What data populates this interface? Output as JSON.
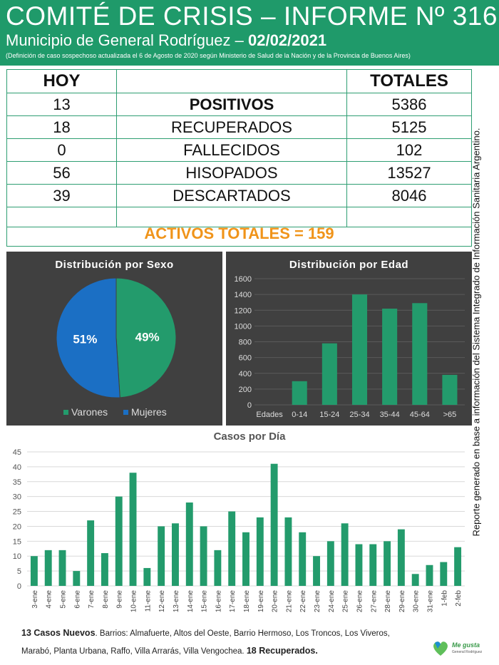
{
  "header": {
    "title": "COMITÉ DE CRISIS – INFORME Nº 316",
    "subtitle": "Municipio de General Rodríguez –",
    "date": "02/02/2021",
    "note": "(Definición de caso sospechoso actualizada el 6 de Agosto de 2020 según Ministerio de Salud de la Nación y de la Provincia de Buenos Aires)"
  },
  "table": {
    "hoy_label": "HOY",
    "totales_label": "TOTALES",
    "rows": [
      {
        "hoy": "13",
        "label": "POSITIVOS",
        "total": "5386"
      },
      {
        "hoy": "18",
        "label": "RECUPERADOS",
        "total": "5125"
      },
      {
        "hoy": "0",
        "label": "FALLECIDOS",
        "total": "102"
      },
      {
        "hoy": "56",
        "label": "HISOPADOS",
        "total": "13527"
      },
      {
        "hoy": "39",
        "label": "DESCARTADOS",
        "total": "8046"
      }
    ],
    "activos": "ACTIVOS TOTALES = 159"
  },
  "side_note": "Reporte generado en base a información del Sistema Integrado de Información Sanitaria Argentino.",
  "colors": {
    "green": "#1f9a6a",
    "bar": "#239b6c",
    "blue": "#1b6fc4",
    "orange": "#f0941a",
    "panel": "#404040"
  },
  "chart_data": [
    {
      "type": "pie",
      "title": "Distribución por Sexo",
      "categories": [
        "Varones",
        "Mujeres"
      ],
      "values": [
        49,
        51
      ],
      "labels": [
        "49%",
        "51%"
      ],
      "legend": "bottom"
    },
    {
      "type": "bar",
      "title": "Distribución por Edad",
      "categories": [
        "Edades",
        "0-14",
        "15-24",
        "25-34",
        "35-44",
        "45-64",
        ">65"
      ],
      "values": [
        0,
        300,
        780,
        1400,
        1220,
        1290,
        380
      ],
      "ylim": [
        0,
        1600
      ],
      "yticks": [
        "0",
        "200",
        "400",
        "600",
        "800",
        "1000",
        "1200",
        "1400",
        "1600"
      ],
      "grid": true
    },
    {
      "type": "bar",
      "title": "Casos por Día",
      "categories": [
        "3-ene",
        "4-ene",
        "5-ene",
        "6-ene",
        "7-ene",
        "8-ene",
        "9-ene",
        "10-ene",
        "11-ene",
        "12-ene",
        "13-ene",
        "14-ene",
        "15-ene",
        "16-ene",
        "17-ene",
        "18-ene",
        "19-ene",
        "20-ene",
        "21-ene",
        "22-ene",
        "23-ene",
        "24-ene",
        "25-ene",
        "26-ene",
        "27-ene",
        "28-ene",
        "29-ene",
        "30-ene",
        "31-ene",
        "1-feb",
        "2-feb"
      ],
      "values": [
        10,
        12,
        12,
        5,
        22,
        11,
        30,
        38,
        6,
        20,
        21,
        28,
        20,
        12,
        25,
        18,
        23,
        41,
        23,
        18,
        10,
        15,
        21,
        14,
        14,
        15,
        19,
        4,
        7,
        8,
        13
      ],
      "ylim": [
        0,
        45
      ],
      "yticks": [
        "0",
        "5",
        "10",
        "15",
        "20",
        "25",
        "30",
        "35",
        "40",
        "45"
      ],
      "grid": true
    }
  ],
  "footer": {
    "cases_bold": "13 Casos Nuevos",
    "barrios": ". Barrios: Almafuerte, Altos del Oeste, Barrio Hermoso, Los Troncos, Los Viveros, Marabó, Planta Urbana, Raffo, Villa Arrarás, Villa Vengochea. ",
    "recuperados_bold": "18 Recuperados.",
    "logo_text": "Me gusta",
    "logo_sub": "General Rodríguez"
  }
}
